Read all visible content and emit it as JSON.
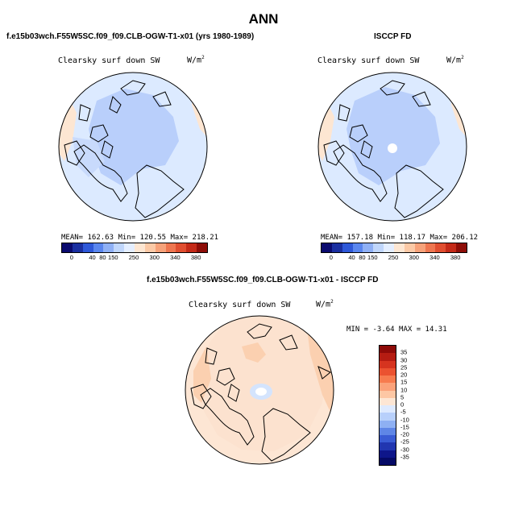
{
  "page_title": "ANN",
  "top_left": {
    "case_title": "f.e15b03wch.F55W5SC.f09_f09.CLB-OGW-T1-x01 (yrs 1980-1989)",
    "variable": "Clearsky surf down SW",
    "units": "W/m",
    "units_exp": "2",
    "stats": "MEAN= 162.63   Min= 120.55   Max= 218.21"
  },
  "top_right": {
    "case_title": "ISCCP FD",
    "variable": "Clearsky surf down SW",
    "units": "W/m",
    "units_exp": "2",
    "stats": "MEAN= 157.18   Min= 118.17   Max= 206.12"
  },
  "abs_colorbar": {
    "ticks": [
      "0",
      "40",
      "80",
      "150",
      "250",
      "300",
      "340",
      "380"
    ],
    "colors": [
      "#0a0a6e",
      "#1a2fa0",
      "#2e58d8",
      "#5a86ee",
      "#8fb0f5",
      "#c0d6fb",
      "#e4eeff",
      "#fde6d2",
      "#fbc9a6",
      "#f6a27a",
      "#ee7650",
      "#e04e30",
      "#c42a18",
      "#8e0e08"
    ]
  },
  "diff": {
    "case_title": "f.e15b03wch.F55W5SC.f09_f09.CLB-OGW-T1-x01 - ISCCP FD",
    "variable": "Clearsky surf down SW",
    "units": "W/m",
    "units_exp": "2",
    "minmax": "MIN =  -3.64  MAX =  14.31",
    "ticks": [
      "35",
      "30",
      "25",
      "20",
      "15",
      "10",
      "5",
      "0",
      "-5",
      "-10",
      "-15",
      "-20",
      "-25",
      "-30",
      "-35"
    ],
    "colors": [
      "#8e0a08",
      "#b51c12",
      "#d6341f",
      "#eb5230",
      "#f77b4e",
      "#fba27a",
      "#fdc7a4",
      "#fde6d4",
      "#deeaff",
      "#b8d0fb",
      "#8eb0f3",
      "#5f86e6",
      "#3a5cd4",
      "#2136b0",
      "#0e168a",
      "#050a66"
    ]
  }
}
